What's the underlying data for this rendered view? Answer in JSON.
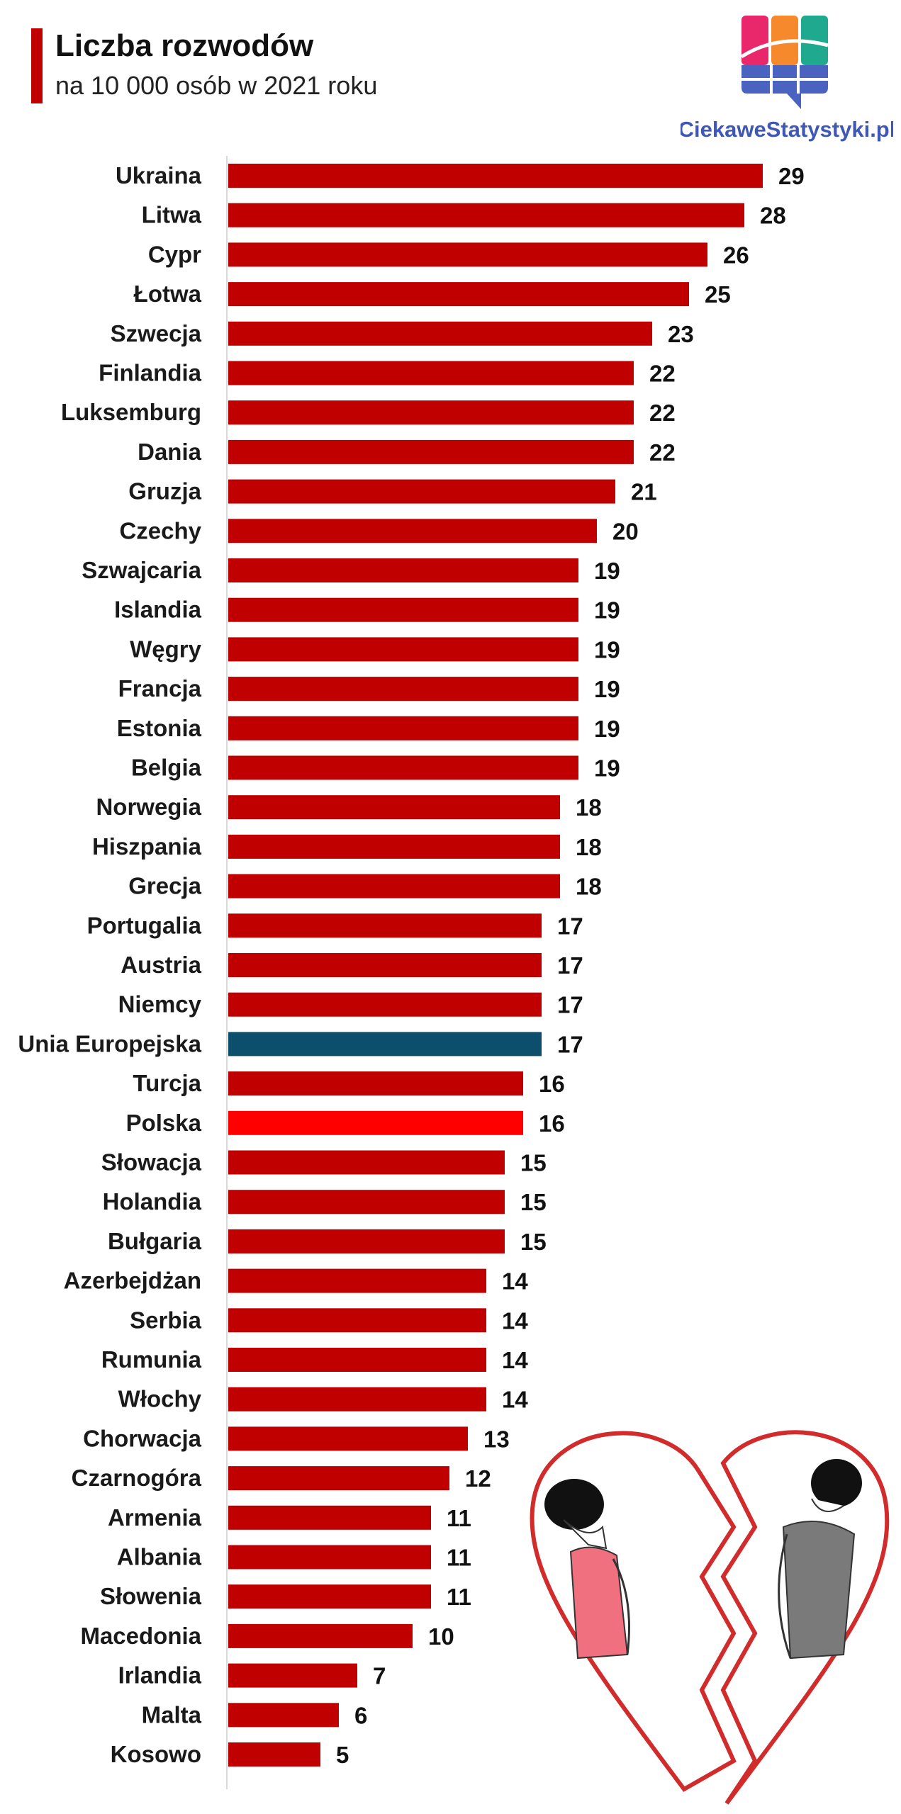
{
  "header": {
    "title": "Liczba rozwodów",
    "subtitle": "na 10 000 osób w 2021 roku"
  },
  "logo": {
    "text": "CiekaweStatystyki.pl"
  },
  "colors": {
    "bar": "#c00000",
    "eu_bar": "#0b4f6c",
    "poland_bar": "#ff0000",
    "accent": "#c00000"
  },
  "chart_data": {
    "type": "bar",
    "orientation": "horizontal",
    "title": "Liczba rozwodów",
    "subtitle": "na 10 000 osób w 2021 roku",
    "categories": [
      "Ukraina",
      "Litwa",
      "Cypr",
      "Łotwa",
      "Szwecja",
      "Finlandia",
      "Luksemburg",
      "Dania",
      "Gruzja",
      "Czechy",
      "Szwajcaria",
      "Islandia",
      "Węgry",
      "Francja",
      "Estonia",
      "Belgia",
      "Norwegia",
      "Hiszpania",
      "Grecja",
      "Portugalia",
      "Austria",
      "Niemcy",
      "Unia Europejska",
      "Turcja",
      "Polska",
      "Słowacja",
      "Holandia",
      "Bułgaria",
      "Azerbejdżan",
      "Serbia",
      "Rumunia",
      "Włochy",
      "Chorwacja",
      "Czarnogóra",
      "Armenia",
      "Albania",
      "Słowenia",
      "Macedonia",
      "Irlandia",
      "Malta",
      "Kosowo"
    ],
    "values": [
      29,
      28,
      26,
      25,
      23,
      22,
      22,
      22,
      21,
      20,
      19,
      19,
      19,
      19,
      19,
      19,
      18,
      18,
      18,
      17,
      17,
      17,
      17,
      16,
      16,
      15,
      15,
      15,
      14,
      14,
      14,
      14,
      13,
      12,
      11,
      11,
      11,
      10,
      7,
      6,
      5
    ],
    "highlights": {
      "Unia Europejska": "eu",
      "Polska": "poland"
    },
    "xlim": [
      0,
      29
    ],
    "grid": false,
    "legend": "none",
    "data_labels": true
  }
}
